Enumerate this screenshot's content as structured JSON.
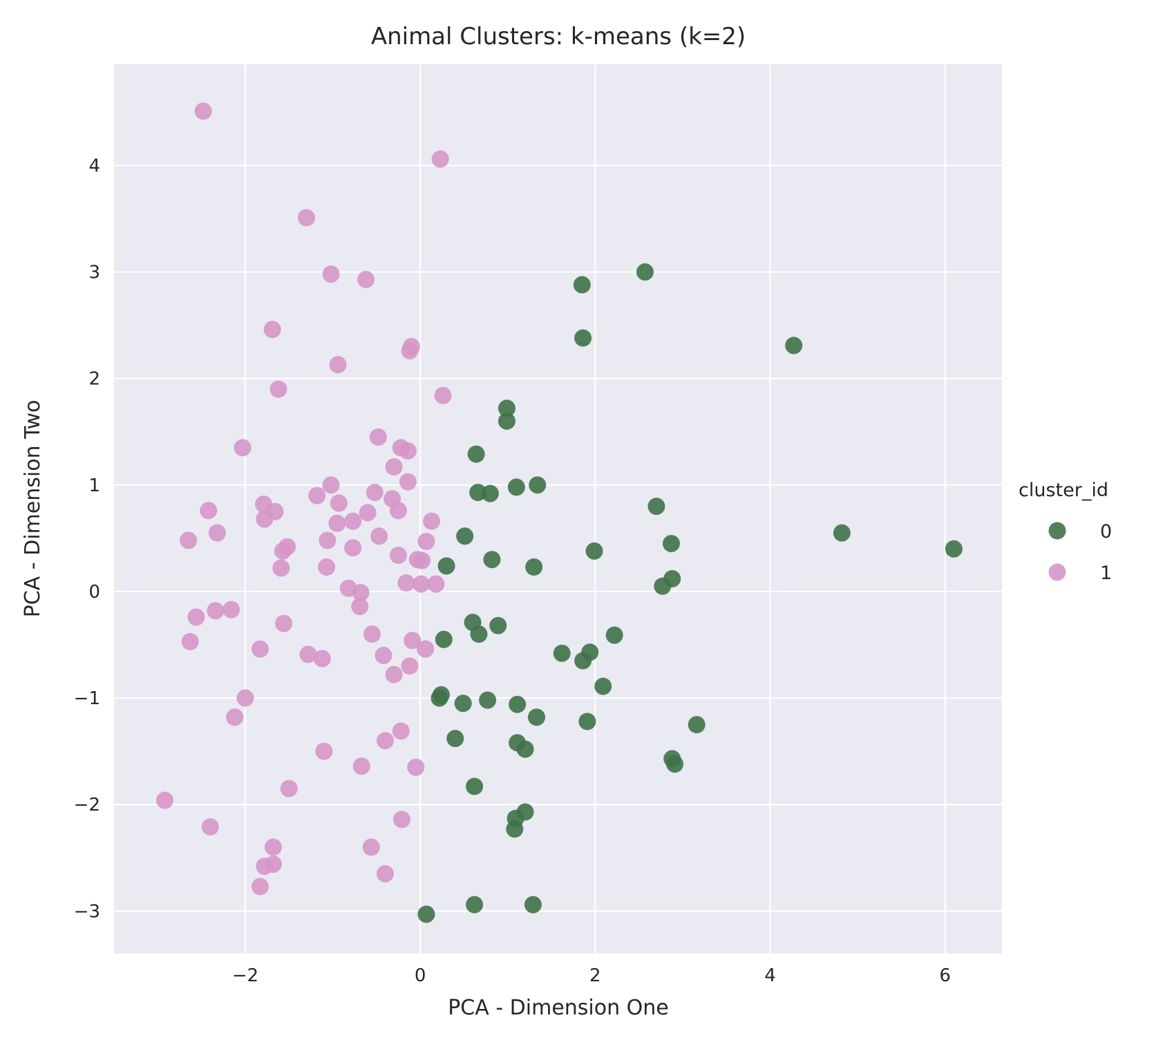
{
  "chart_data": {
    "type": "scatter",
    "title": "Animal Clusters: k-means (k=2)",
    "xlabel": "PCA - Dimension One",
    "ylabel": "PCA - Dimension Two",
    "xlim": [
      -3.5,
      6.65
    ],
    "ylim": [
      -3.4,
      4.95
    ],
    "xticks": [
      -2,
      0,
      2,
      4,
      6
    ],
    "yticks": [
      -3,
      -2,
      -1,
      0,
      1,
      2,
      3,
      4
    ],
    "xtick_labels": [
      "−2",
      "0",
      "2",
      "4",
      "6"
    ],
    "ytick_labels": [
      "−3",
      "−2",
      "−1",
      "0",
      "1",
      "2",
      "3",
      "4"
    ],
    "grid": true,
    "legend": {
      "title": "cluster_id",
      "placement": "right"
    },
    "series": [
      {
        "name": "0",
        "color": "#3f7248",
        "points": [
          [
            2.57,
            3.0
          ],
          [
            1.85,
            2.88
          ],
          [
            1.86,
            2.38
          ],
          [
            4.27,
            2.31
          ],
          [
            0.99,
            1.72
          ],
          [
            0.99,
            1.6
          ],
          [
            0.64,
            1.29
          ],
          [
            0.66,
            0.93
          ],
          [
            0.8,
            0.92
          ],
          [
            1.1,
            0.98
          ],
          [
            1.34,
            1.0
          ],
          [
            2.7,
            0.8
          ],
          [
            4.82,
            0.55
          ],
          [
            0.51,
            0.52
          ],
          [
            2.87,
            0.45
          ],
          [
            6.1,
            0.4
          ],
          [
            0.82,
            0.3
          ],
          [
            1.99,
            0.38
          ],
          [
            0.3,
            0.24
          ],
          [
            1.3,
            0.23
          ],
          [
            2.88,
            0.12
          ],
          [
            2.77,
            0.05
          ],
          [
            0.6,
            -0.29
          ],
          [
            0.67,
            -0.4
          ],
          [
            0.89,
            -0.32
          ],
          [
            0.27,
            -0.45
          ],
          [
            2.22,
            -0.41
          ],
          [
            1.62,
            -0.58
          ],
          [
            1.94,
            -0.57
          ],
          [
            1.86,
            -0.65
          ],
          [
            2.09,
            -0.89
          ],
          [
            0.22,
            -1.0
          ],
          [
            0.24,
            -0.97
          ],
          [
            0.49,
            -1.05
          ],
          [
            0.77,
            -1.02
          ],
          [
            1.11,
            -1.06
          ],
          [
            1.33,
            -1.18
          ],
          [
            1.91,
            -1.22
          ],
          [
            3.16,
            -1.25
          ],
          [
            0.4,
            -1.38
          ],
          [
            1.11,
            -1.42
          ],
          [
            1.2,
            -1.48
          ],
          [
            2.88,
            -1.57
          ],
          [
            2.91,
            -1.62
          ],
          [
            0.62,
            -1.83
          ],
          [
            1.2,
            -2.07
          ],
          [
            1.09,
            -2.13
          ],
          [
            1.08,
            -2.23
          ],
          [
            0.62,
            -2.94
          ],
          [
            1.29,
            -2.94
          ],
          [
            0.07,
            -3.03
          ]
        ]
      },
      {
        "name": "1",
        "color": "#d696c8",
        "points": [
          [
            -2.48,
            4.51
          ],
          [
            0.23,
            4.06
          ],
          [
            -1.3,
            3.51
          ],
          [
            -1.02,
            2.98
          ],
          [
            -0.62,
            2.93
          ],
          [
            -1.69,
            2.46
          ],
          [
            -0.1,
            2.3
          ],
          [
            -0.12,
            2.26
          ],
          [
            -0.94,
            2.13
          ],
          [
            -1.62,
            1.9
          ],
          [
            0.26,
            1.84
          ],
          [
            -2.03,
            1.35
          ],
          [
            -0.48,
            1.45
          ],
          [
            -0.22,
            1.35
          ],
          [
            -0.14,
            1.32
          ],
          [
            -0.3,
            1.17
          ],
          [
            -0.14,
            1.03
          ],
          [
            -1.02,
            1.0
          ],
          [
            -0.52,
            0.93
          ],
          [
            -1.18,
            0.9
          ],
          [
            -0.32,
            0.87
          ],
          [
            -1.79,
            0.82
          ],
          [
            -0.93,
            0.83
          ],
          [
            -2.42,
            0.76
          ],
          [
            -1.66,
            0.75
          ],
          [
            -0.6,
            0.74
          ],
          [
            -0.25,
            0.76
          ],
          [
            -1.78,
            0.68
          ],
          [
            -0.77,
            0.66
          ],
          [
            -0.95,
            0.64
          ],
          [
            0.13,
            0.66
          ],
          [
            -2.32,
            0.55
          ],
          [
            -0.47,
            0.52
          ],
          [
            -2.65,
            0.48
          ],
          [
            -1.06,
            0.48
          ],
          [
            0.07,
            0.47
          ],
          [
            -1.52,
            0.42
          ],
          [
            -1.57,
            0.38
          ],
          [
            -0.77,
            0.41
          ],
          [
            -0.25,
            0.34
          ],
          [
            -0.03,
            0.3
          ],
          [
            0.02,
            0.29
          ],
          [
            -1.59,
            0.22
          ],
          [
            -1.07,
            0.23
          ],
          [
            -0.16,
            0.08
          ],
          [
            0.01,
            0.07
          ],
          [
            0.18,
            0.07
          ],
          [
            -0.82,
            0.03
          ],
          [
            -0.68,
            -0.01
          ],
          [
            -0.69,
            -0.14
          ],
          [
            -2.56,
            -0.24
          ],
          [
            -2.34,
            -0.18
          ],
          [
            -2.16,
            -0.17
          ],
          [
            -1.56,
            -0.3
          ],
          [
            -0.55,
            -0.4
          ],
          [
            -0.09,
            -0.46
          ],
          [
            -2.63,
            -0.47
          ],
          [
            -1.83,
            -0.54
          ],
          [
            0.06,
            -0.54
          ],
          [
            -1.28,
            -0.59
          ],
          [
            -1.12,
            -0.63
          ],
          [
            -0.42,
            -0.6
          ],
          [
            -0.12,
            -0.7
          ],
          [
            -0.3,
            -0.78
          ],
          [
            -2.0,
            -1.0
          ],
          [
            -2.12,
            -1.18
          ],
          [
            -0.22,
            -1.31
          ],
          [
            -0.4,
            -1.4
          ],
          [
            -1.1,
            -1.5
          ],
          [
            -0.67,
            -1.64
          ],
          [
            -0.05,
            -1.65
          ],
          [
            -1.5,
            -1.85
          ],
          [
            -2.92,
            -1.96
          ],
          [
            -0.21,
            -2.14
          ],
          [
            -2.4,
            -2.21
          ],
          [
            -1.68,
            -2.4
          ],
          [
            -0.56,
            -2.4
          ],
          [
            -1.78,
            -2.58
          ],
          [
            -1.68,
            -2.56
          ],
          [
            -0.4,
            -2.65
          ],
          [
            -1.83,
            -2.77
          ]
        ]
      }
    ]
  }
}
